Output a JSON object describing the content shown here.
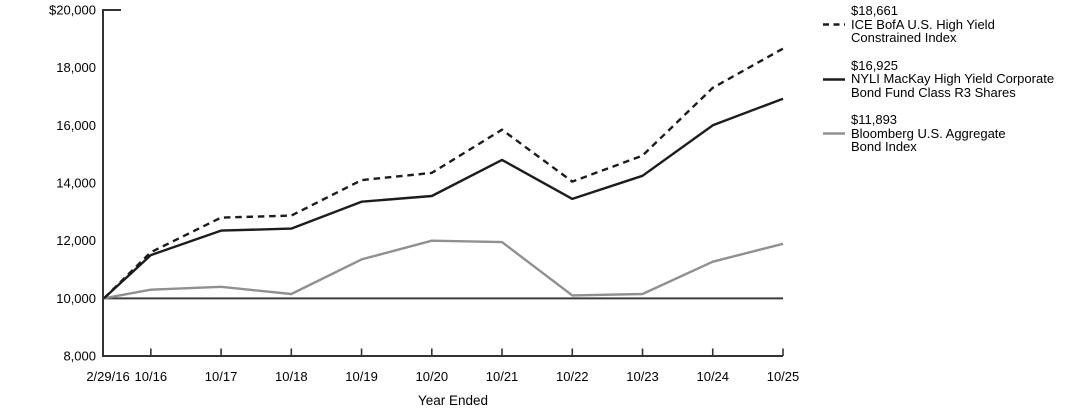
{
  "chart_data": {
    "type": "line",
    "title": "",
    "xlabel": "Year Ended",
    "ylabel": "",
    "grid": false,
    "legend_position": "right",
    "ylim": [
      8000,
      20000
    ],
    "baseline_value": 10000,
    "y_ticks": [
      {
        "value": 20000,
        "label": "$20,000"
      },
      {
        "value": 18000,
        "label": "18,000"
      },
      {
        "value": 16000,
        "label": "16,000"
      },
      {
        "value": 14000,
        "label": "14,000"
      },
      {
        "value": 12000,
        "label": "12,000"
      },
      {
        "value": 10000,
        "label": "10,000"
      },
      {
        "value": 8000,
        "label": "8,000"
      }
    ],
    "categories": [
      "2/29/16",
      "10/16",
      "10/17",
      "10/18",
      "10/19",
      "10/20",
      "10/21",
      "10/22",
      "10/23",
      "10/24",
      "10/25"
    ],
    "x_months": [
      0,
      8,
      20,
      32,
      44,
      56,
      68,
      80,
      92,
      104,
      116
    ],
    "series": [
      {
        "name": "ICE BofA U.S. High Yield Constrained Index",
        "label_lines": [
          "ICE BofA U.S. High Yield",
          "Constrained Index"
        ],
        "final_value_label": "$18,661",
        "style": "dashed",
        "color": "#1c1c1c",
        "values": [
          10000,
          11600,
          12800,
          12870,
          14100,
          14350,
          15850,
          14050,
          14950,
          17300,
          18661
        ]
      },
      {
        "name": "NYLI MacKay High Yield Corporate Bond Fund Class R3 Shares",
        "label_lines": [
          "NYLI MacKay High Yield Corporate",
          "Bond Fund Class R3 Shares"
        ],
        "final_value_label": "$16,925",
        "style": "solid",
        "color": "#1c1c1c",
        "values": [
          10000,
          11500,
          12350,
          12420,
          13350,
          13550,
          14800,
          13450,
          14250,
          16000,
          16925
        ]
      },
      {
        "name": "Bloomberg U.S. Aggregate Bond Index",
        "label_lines": [
          "Bloomberg U.S. Aggregate",
          "Bond Index"
        ],
        "final_value_label": "$11,893",
        "style": "solid",
        "color": "#909090",
        "values": [
          10000,
          10300,
          10400,
          10150,
          11350,
          12000,
          11950,
          10100,
          10150,
          11270,
          11893
        ]
      }
    ],
    "colors": {
      "axis": "#333333",
      "baseline": "#3c3c3c",
      "text": "#000000"
    }
  }
}
